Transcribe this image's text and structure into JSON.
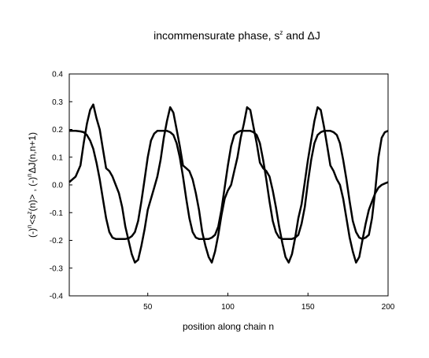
{
  "chart_data": {
    "type": "line",
    "title": "incommensurate phase, s",
    "title_sup": "z",
    "title_suffix": " and ΔJ",
    "xlabel": "position along chain n",
    "ylabel_parts": {
      "p1": "(-)",
      "p1_sup": "n",
      "p2": "<s",
      "p2_sup": "z",
      "p3": "(n)> ,  (-)",
      "p3_sup": "n",
      "p4": "ΔJ(n,n+1)"
    },
    "xlim": [
      1,
      200
    ],
    "ylim": [
      -0.4,
      0.4
    ],
    "x_ticks": [
      50,
      100,
      150,
      200
    ],
    "x_tick_labels": [
      "50",
      "100",
      "150",
      "200"
    ],
    "y_ticks": [
      -0.4,
      -0.3,
      -0.2,
      -0.1,
      0.0,
      0.1,
      0.2,
      0.3,
      0.4
    ],
    "y_tick_labels": [
      "-0.4",
      "-0.3",
      "-0.2",
      "-0.1",
      "0.0",
      "0.1",
      "0.2",
      "0.3",
      "0.4"
    ],
    "grid": false,
    "legend": "none",
    "line_color": "#000000",
    "series": [
      {
        "x": [
          1,
          5,
          8,
          10,
          12,
          14,
          16,
          18,
          20,
          22,
          24,
          26,
          28,
          30,
          32,
          34,
          36,
          38,
          40,
          42,
          44,
          46,
          48,
          50,
          52,
          54,
          56,
          58,
          60,
          62,
          64,
          66,
          68,
          70,
          72,
          74,
          76,
          78,
          80,
          82,
          84,
          86,
          88,
          90,
          92,
          94,
          96,
          98,
          100,
          102,
          104,
          106,
          108,
          110,
          112,
          114,
          116,
          118,
          120,
          122,
          124,
          126,
          128,
          130,
          132,
          134,
          136,
          138,
          140,
          142,
          144,
          146,
          148,
          150,
          152,
          154,
          156,
          158,
          160,
          162,
          164,
          166,
          168,
          170,
          172,
          174,
          176,
          178,
          180,
          182,
          184,
          186,
          188,
          190,
          192,
          194,
          196,
          198,
          200
        ],
        "values": [
          0.01,
          0.03,
          0.07,
          0.15,
          0.22,
          0.27,
          0.29,
          0.24,
          0.2,
          0.13,
          0.06,
          0.05,
          0.03,
          0.0,
          -0.03,
          -0.08,
          -0.15,
          -0.2,
          -0.25,
          -0.28,
          -0.27,
          -0.22,
          -0.16,
          -0.09,
          -0.05,
          -0.01,
          0.03,
          0.09,
          0.17,
          0.23,
          0.28,
          0.26,
          0.2,
          0.14,
          0.07,
          0.06,
          0.05,
          0.02,
          -0.03,
          -0.09,
          -0.17,
          -0.22,
          -0.26,
          -0.28,
          -0.24,
          -0.18,
          -0.11,
          -0.05,
          -0.02,
          0.0,
          0.05,
          0.1,
          0.17,
          0.22,
          0.28,
          0.27,
          0.21,
          0.15,
          0.08,
          0.06,
          0.05,
          0.03,
          -0.02,
          -0.08,
          -0.15,
          -0.21,
          -0.26,
          -0.28,
          -0.25,
          -0.19,
          -0.12,
          -0.07,
          0.01,
          0.09,
          0.16,
          0.23,
          0.28,
          0.27,
          0.21,
          0.14,
          0.07,
          0.05,
          0.02,
          0.0,
          -0.05,
          -0.12,
          -0.19,
          -0.24,
          -0.28,
          -0.26,
          -0.2,
          -0.14,
          -0.09,
          -0.06,
          -0.03,
          -0.01,
          0.0,
          0.005,
          0.01
        ]
      },
      {
        "x": [
          1,
          5,
          8,
          10,
          12,
          14,
          16,
          18,
          20,
          22,
          24,
          26,
          28,
          30,
          32,
          34,
          36,
          38,
          40,
          42,
          44,
          46,
          48,
          50,
          52,
          54,
          56,
          58,
          60,
          62,
          64,
          66,
          68,
          70,
          72,
          74,
          76,
          78,
          80,
          82,
          84,
          86,
          88,
          90,
          92,
          94,
          96,
          98,
          100,
          102,
          104,
          106,
          108,
          110,
          112,
          114,
          116,
          118,
          120,
          122,
          124,
          126,
          128,
          130,
          132,
          134,
          136,
          138,
          140,
          142,
          144,
          146,
          148,
          150,
          152,
          154,
          156,
          158,
          160,
          162,
          164,
          166,
          168,
          170,
          172,
          174,
          176,
          178,
          180,
          182,
          184,
          186,
          188,
          190,
          192,
          194,
          196,
          198,
          200
        ],
        "values": [
          0.195,
          0.195,
          0.193,
          0.19,
          0.18,
          0.16,
          0.13,
          0.08,
          0.02,
          -0.05,
          -0.12,
          -0.17,
          -0.19,
          -0.195,
          -0.195,
          -0.195,
          -0.195,
          -0.193,
          -0.185,
          -0.17,
          -0.13,
          -0.06,
          0.02,
          0.1,
          0.16,
          0.185,
          0.195,
          0.195,
          0.195,
          0.195,
          0.19,
          0.18,
          0.15,
          0.1,
          0.03,
          -0.05,
          -0.12,
          -0.17,
          -0.19,
          -0.195,
          -0.195,
          -0.195,
          -0.195,
          -0.19,
          -0.18,
          -0.15,
          -0.09,
          -0.01,
          0.07,
          0.14,
          0.18,
          0.19,
          0.195,
          0.195,
          0.195,
          0.195,
          0.19,
          0.18,
          0.15,
          0.09,
          0.02,
          -0.06,
          -0.13,
          -0.17,
          -0.19,
          -0.195,
          -0.195,
          -0.195,
          -0.195,
          -0.19,
          -0.18,
          -0.14,
          -0.08,
          0.01,
          0.09,
          0.15,
          0.18,
          0.19,
          0.195,
          0.195,
          0.195,
          0.19,
          0.18,
          0.15,
          0.09,
          0.02,
          -0.06,
          -0.13,
          -0.17,
          -0.19,
          -0.195,
          -0.19,
          -0.18,
          -0.12,
          -0.02,
          0.1,
          0.17,
          0.19,
          0.195
        ]
      }
    ]
  }
}
